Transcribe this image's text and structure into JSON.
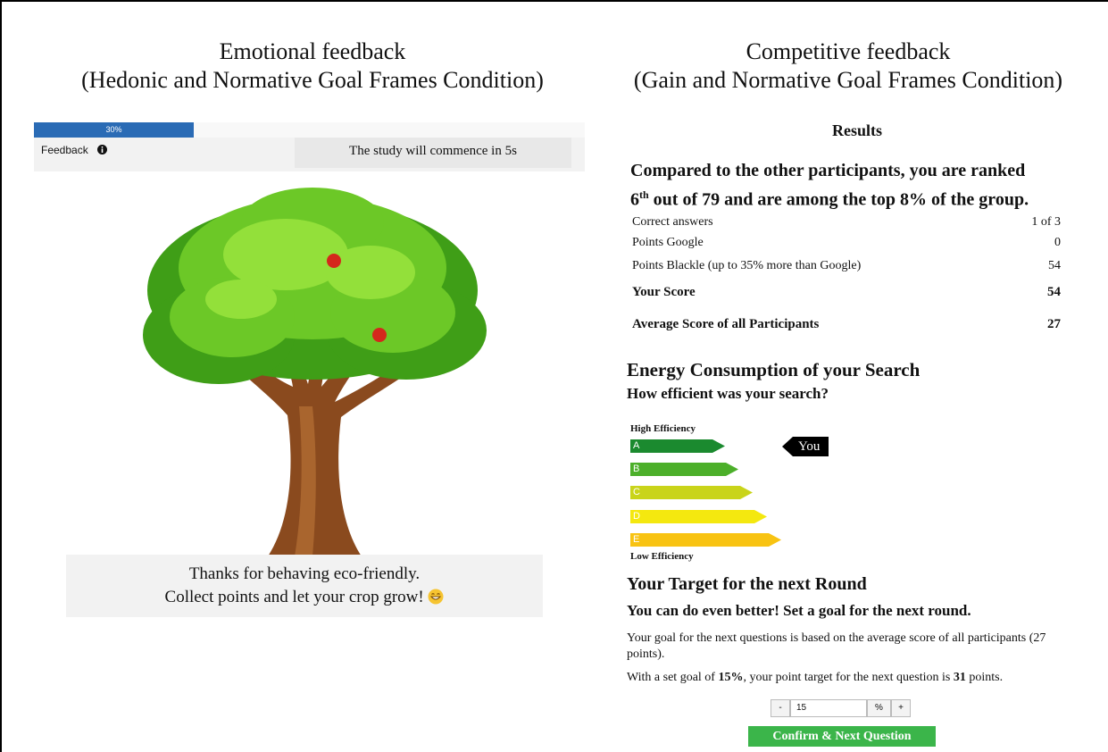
{
  "left": {
    "title": [
      "Emotional feedback",
      "(Hedonic and Normative Goal Frames Condition)"
    ],
    "progress_label": "30%",
    "feedback_label": "Feedback",
    "countdown": "The study will commence in 5s",
    "caption": [
      "Thanks for behaving eco-friendly.",
      "Collect points and let your crop grow!"
    ]
  },
  "right": {
    "title": [
      "Competitive feedback",
      "(Gain and Normative Goal Frames Condition)"
    ],
    "results_heading": "Results",
    "rank_line1": "Compared to the other participants, you are ranked",
    "rank_line2": {
      "rank": "6",
      "suffix": "th",
      "rest": " out of 79 and are among the top 8% of the group."
    },
    "table": {
      "rows": [
        [
          "Correct answers",
          "1 of 3"
        ],
        [
          "Points Google",
          "0"
        ],
        [
          "Points Blackle (up to 35% more than Google)",
          "54"
        ],
        [
          "Your Score",
          "54"
        ],
        [
          "Average Score of all Participants",
          "27"
        ]
      ]
    },
    "energy": {
      "heading": "Energy Consumption of your Search",
      "question": "How efficient was your search?",
      "high_label": "High Efficiency",
      "classes": [
        "A",
        "B",
        "C",
        "D",
        "E"
      ],
      "low_label": "Low Efficiency",
      "marker": "You"
    },
    "target": {
      "heading": "Your Target for the next Round",
      "subheading": "You can do even better! Set a goal for the next round.",
      "paragraph": "Your goal for the next questions is based on the average score of all participants (27 points).",
      "goal_line": [
        "With a set goal of ",
        "15%",
        ", your point target for the next question is ",
        "31",
        " points."
      ],
      "spinner": [
        "-",
        "15",
        "%",
        "+"
      ],
      "button": "Confirm & Next Question"
    }
  }
}
